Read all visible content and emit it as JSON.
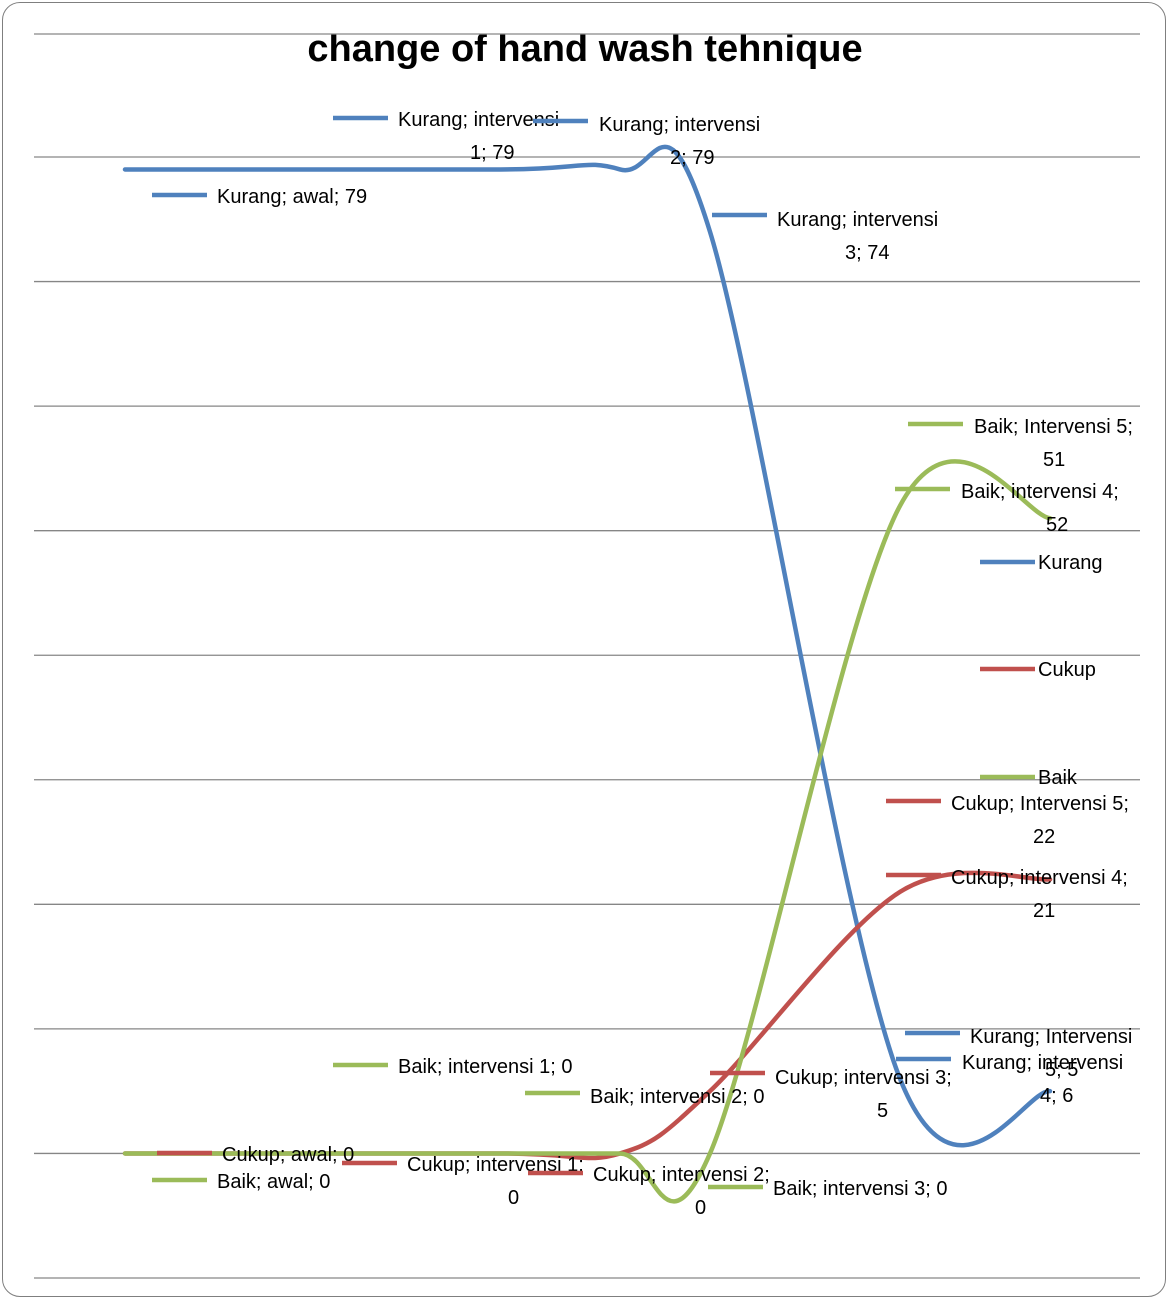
{
  "chart_data": {
    "type": "line",
    "title": "change  of  hand wash tehnique",
    "categories": [
      "awal",
      "intervensi 1",
      "intervensi 2",
      "intervensi 3",
      "intervensi 4",
      "Intervensi 5"
    ],
    "series": [
      {
        "name": "Kurang",
        "color": "#4f81bd",
        "values": [
          79,
          79,
          79,
          74,
          6,
          5
        ],
        "labels": [
          [
            "Kurang; awal; 79"
          ],
          [
            "Kurang; intervensi",
            "1; 79"
          ],
          [
            "Kurang; intervensi",
            "2; 79"
          ],
          [
            "Kurang; intervensi",
            "3; 74"
          ],
          [
            "Kurang; intervensi",
            "4; 6"
          ],
          [
            "Kurang; Intervensi",
            "5; 5"
          ]
        ]
      },
      {
        "name": "Cukup",
        "color": "#c0504d",
        "values": [
          0,
          0,
          0,
          5,
          21,
          22
        ],
        "labels": [
          [
            "Cukup; awal; 0"
          ],
          [
            "Cukup; intervensi 1;",
            "0"
          ],
          [
            "Cukup; intervensi 2;",
            "0"
          ],
          [
            "Cukup; intervensi 3;",
            "5"
          ],
          [
            "Cukup; intervensi 4;",
            "21"
          ],
          [
            "Cukup; Intervensi 5;",
            "22"
          ]
        ]
      },
      {
        "name": "Baik",
        "color": "#9bbb59",
        "values": [
          0,
          0,
          0,
          0,
          52,
          51
        ],
        "labels": [
          [
            "Baik; awal; 0"
          ],
          [
            "Baik; intervensi 1; 0"
          ],
          [
            "Baik; intervensi 2; 0"
          ],
          [
            "Baik; intervensi 3; 0"
          ],
          [
            "Baik; intervensi 4;",
            "52"
          ],
          [
            "Baik; Intervensi 5;",
            "51"
          ]
        ]
      }
    ],
    "ylim": [
      -10,
      80
    ],
    "grid": true,
    "legend": {
      "position": "right",
      "entries": [
        "Kurang",
        "Cukup",
        "Baik"
      ]
    }
  }
}
